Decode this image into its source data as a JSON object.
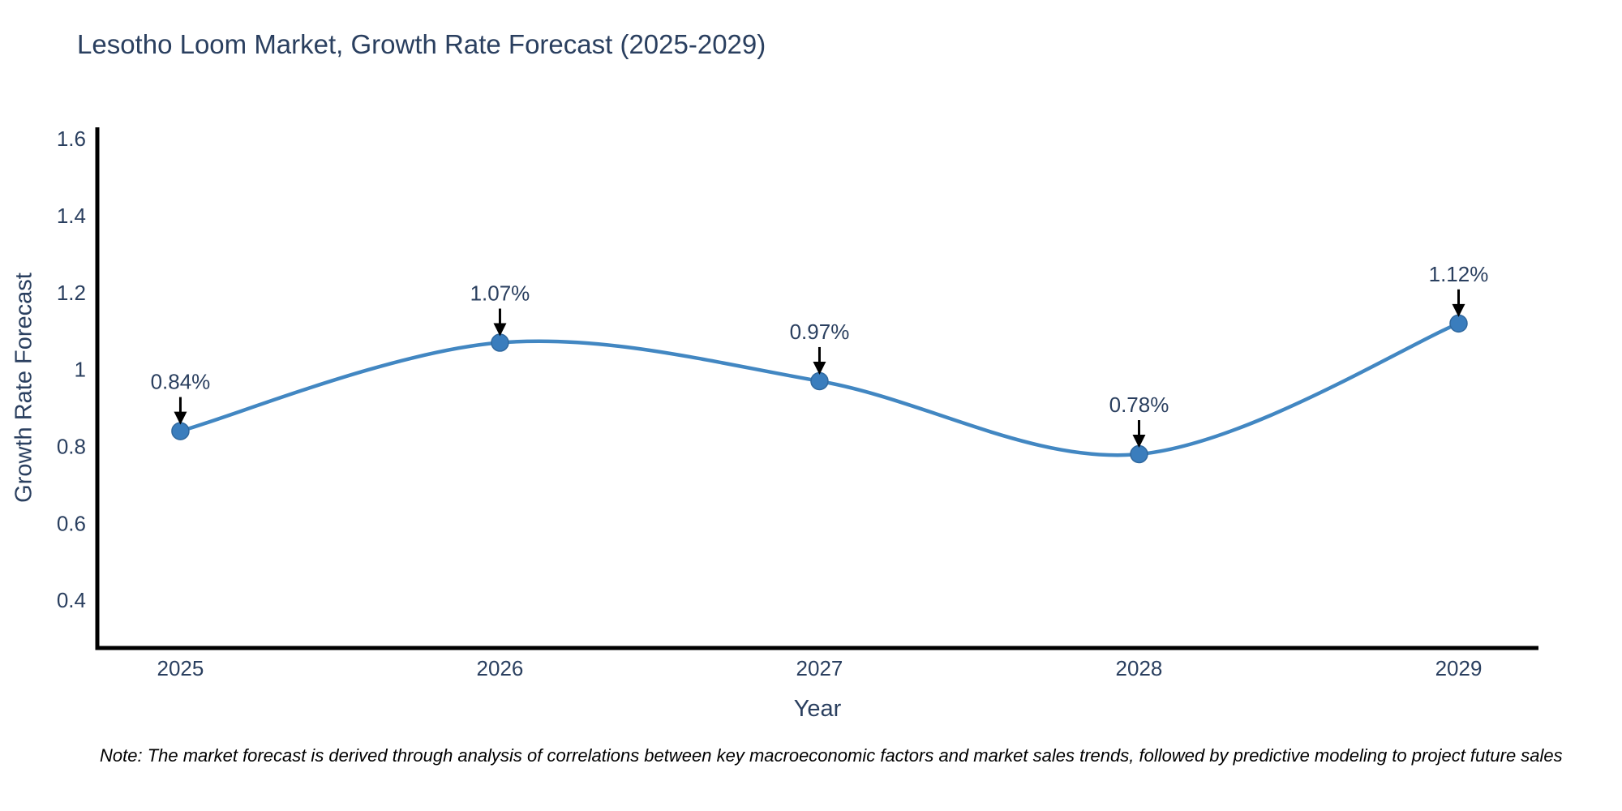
{
  "page": {
    "title": "Lesotho Loom Market, Growth Rate Forecast (2025-2029)",
    "note": "Note: The market forecast is derived through analysis of correlations between key macroeconomic factors and market sales trends, followed by predictive modeling to project future sales"
  },
  "chart_data": {
    "type": "line",
    "title": "Lesotho Loom Market, Growth Rate Forecast (2025-2029)",
    "xlabel": "Year",
    "ylabel": "Growth Rate Forecast",
    "x": [
      2025,
      2026,
      2027,
      2028,
      2029
    ],
    "series": [
      {
        "name": "Growth Rate Forecast",
        "values": [
          0.84,
          1.07,
          0.97,
          0.78,
          1.12
        ]
      }
    ],
    "point_labels": [
      "0.84%",
      "1.07%",
      "0.97%",
      "0.78%",
      "1.12%"
    ],
    "xtick_labels": [
      "2025",
      "2026",
      "2027",
      "2028",
      "2029"
    ],
    "ytick_values": [
      1.6,
      1.4,
      1.2,
      1.0,
      0.8,
      0.6,
      0.4
    ],
    "ytick_labels": [
      "1.6",
      "1.4",
      "1.2",
      "1",
      "0.8",
      "0.6",
      "0.4"
    ],
    "xlim": [
      2024.74,
      2029.25
    ],
    "ylim": [
      0.276,
      1.63
    ],
    "grid": false,
    "legend": false,
    "line_shape": "spline",
    "annotation_style": "percentage labels with black down-arrows above each data point",
    "colors": {
      "line": "#4287c2",
      "marker": "#3a7dbd",
      "marker_edge": "#30689e",
      "text": "#2a3f5f",
      "axis": "#000000",
      "note_text": "#000000",
      "background": "#ffffff"
    }
  }
}
